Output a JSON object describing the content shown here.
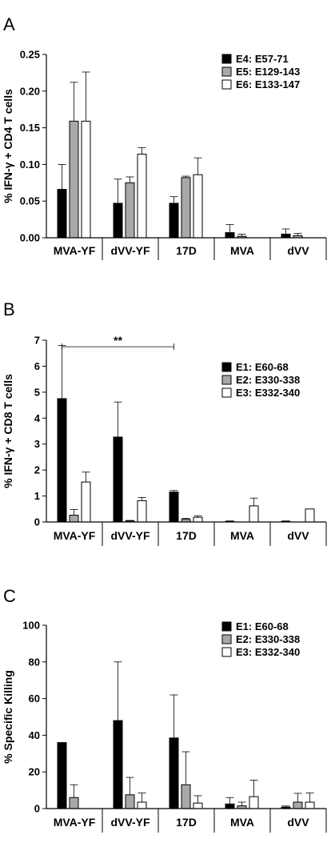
{
  "chart_data": [
    {
      "panel_label": "A",
      "type": "bar",
      "ylabel": "% IFN-γ + CD4 T cells",
      "ylim": [
        0,
        0.25
      ],
      "yticks": [
        "0.00",
        "0.05",
        "0.10",
        "0.15",
        "0.20",
        "0.25"
      ],
      "categories": [
        "MVA-YF",
        "dVV-YF",
        "17D",
        "MVA",
        "dVV"
      ],
      "legend_position": "top-right",
      "series": [
        {
          "name": "E4: E57-71",
          "fill": "#000000",
          "values": [
            0.066,
            0.047,
            0.047,
            0.007,
            0.005
          ],
          "errors": [
            0.034,
            0.033,
            0.009,
            0.011,
            0.007
          ]
        },
        {
          "name": "E5: E129-143",
          "fill": "#a8a8a8",
          "values": [
            0.159,
            0.075,
            0.082,
            0.002,
            0.003
          ],
          "errors": [
            0.053,
            0.008,
            0.002,
            0.003,
            0.003
          ]
        },
        {
          "name": "E6: E133-147",
          "fill": "#ffffff",
          "values": [
            0.159,
            0.114,
            0.086,
            0.0,
            0.0
          ],
          "errors": [
            0.067,
            0.009,
            0.023,
            0.0,
            0.0
          ]
        }
      ],
      "annotations": []
    },
    {
      "panel_label": "B",
      "type": "bar",
      "ylabel": "% IFN-γ + CD8 T cells",
      "ylim": [
        0,
        7
      ],
      "yticks": [
        "0",
        "1",
        "2",
        "3",
        "4",
        "5",
        "6",
        "7"
      ],
      "categories": [
        "MVA-YF",
        "dVV-YF",
        "17D",
        "MVA",
        "dVV"
      ],
      "legend_position": "top-right",
      "series": [
        {
          "name": "E1: E60-68",
          "fill": "#000000",
          "values": [
            4.75,
            3.27,
            1.15,
            0.02,
            0.02
          ],
          "errors": [
            2.05,
            1.35,
            0.06,
            0.02,
            0.02
          ]
        },
        {
          "name": "E2: E330-338",
          "fill": "#a8a8a8",
          "values": [
            0.26,
            0.04,
            0.1,
            0.0,
            0.0
          ],
          "errors": [
            0.22,
            0.02,
            0.04,
            0.0,
            0.0
          ]
        },
        {
          "name": "E3: E332-340",
          "fill": "#ffffff",
          "values": [
            1.54,
            0.82,
            0.18,
            0.62,
            0.5
          ],
          "errors": [
            0.38,
            0.12,
            0.06,
            0.3,
            0.0
          ]
        }
      ],
      "annotations": [
        {
          "text": "**",
          "from_category": 0,
          "to_category": 2,
          "y": 6.75
        }
      ]
    },
    {
      "panel_label": "C",
      "type": "bar",
      "ylabel": "% Specific Killing",
      "ylim": [
        0,
        100
      ],
      "yticks": [
        "0",
        "20",
        "40",
        "60",
        "80",
        "100"
      ],
      "categories": [
        "MVA-YF",
        "dVV-YF",
        "17D",
        "MVA",
        "dVV"
      ],
      "legend_position": "top-right",
      "series": [
        {
          "name": "E1: E60-68",
          "fill": "#000000",
          "values": [
            36,
            48,
            38.5,
            2.5,
            0.8
          ],
          "errors": [
            0,
            32,
            23.5,
            3.5,
            0.6
          ]
        },
        {
          "name": "E2: E330-338",
          "fill": "#a8a8a8",
          "values": [
            6,
            7.5,
            13,
            1.5,
            3.5
          ],
          "errors": [
            7,
            9.5,
            18,
            2,
            4.8
          ]
        },
        {
          "name": "E3: E332-340",
          "fill": "#ffffff",
          "values": [
            0,
            3.5,
            3,
            6.5,
            3.5
          ],
          "errors": [
            0,
            5,
            4,
            9,
            5
          ]
        }
      ],
      "annotations": []
    }
  ]
}
